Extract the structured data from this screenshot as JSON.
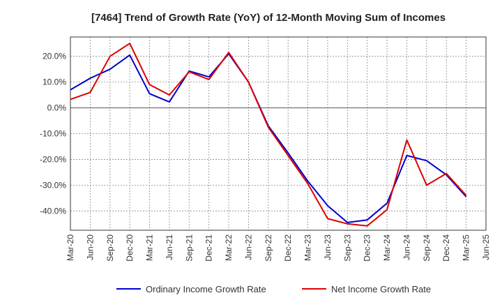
{
  "chart_data": {
    "type": "line",
    "title": "[7464]  Trend of Growth Rate (YoY) of 12-Month Moving Sum of Incomes",
    "xlabel": "",
    "ylabel": "",
    "ylim": [
      -47.5,
      27.5
    ],
    "y_ticks": [
      20,
      10,
      0,
      -10,
      -20,
      -30,
      -40
    ],
    "y_tick_labels": [
      "20.0%",
      "10.0%",
      "0.0%",
      "-10.0%",
      "-20.0%",
      "-30.0%",
      "-40.0%"
    ],
    "x": [
      "Mar-20",
      "Jun-20",
      "Sep-20",
      "Dec-20",
      "Mar-21",
      "Jun-21",
      "Sep-21",
      "Dec-21",
      "Mar-22",
      "Jun-22",
      "Sep-22",
      "Dec-22",
      "Mar-23",
      "Jun-23",
      "Sep-23",
      "Dec-23",
      "Mar-24",
      "Jun-24",
      "Sep-24",
      "Dec-24",
      "Mar-25",
      "Jun-25"
    ],
    "grid": true,
    "legend_position": "bottom",
    "series": [
      {
        "name": "Ordinary Income Growth Rate",
        "color": "#0000cc",
        "values": [
          7.0,
          11.5,
          15.0,
          20.5,
          5.5,
          2.3,
          14.3,
          12.0,
          21.0,
          10.0,
          -7.0,
          -17.5,
          -28.5,
          -38.0,
          -44.5,
          -43.5,
          -37.0,
          -18.5,
          -20.5,
          -26.0,
          -34.5,
          null
        ]
      },
      {
        "name": "Net Income Growth Rate",
        "color": "#dd0000",
        "values": [
          3.3,
          6.0,
          20.0,
          25.0,
          9.0,
          5.0,
          14.0,
          11.0,
          21.5,
          10.0,
          -7.5,
          -18.5,
          -29.5,
          -43.0,
          -45.0,
          -45.8,
          -39.5,
          -12.5,
          -30.0,
          -25.5,
          -34.0,
          null
        ]
      }
    ]
  }
}
